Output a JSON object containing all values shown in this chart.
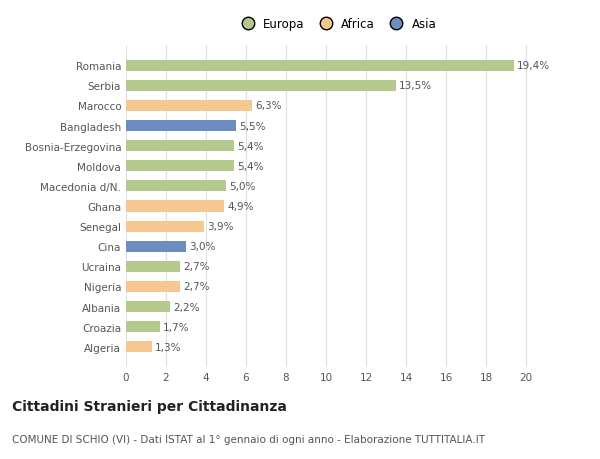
{
  "countries": [
    "Algeria",
    "Croazia",
    "Albania",
    "Nigeria",
    "Ucraina",
    "Cina",
    "Senegal",
    "Ghana",
    "Macedonia d/N.",
    "Moldova",
    "Bosnia-Erzegovina",
    "Bangladesh",
    "Marocco",
    "Serbia",
    "Romania"
  ],
  "values": [
    1.3,
    1.7,
    2.2,
    2.7,
    2.7,
    3.0,
    3.9,
    4.9,
    5.0,
    5.4,
    5.4,
    5.5,
    6.3,
    13.5,
    19.4
  ],
  "continents": [
    "Africa",
    "Europa",
    "Europa",
    "Africa",
    "Europa",
    "Asia",
    "Africa",
    "Africa",
    "Europa",
    "Europa",
    "Europa",
    "Asia",
    "Africa",
    "Europa",
    "Europa"
  ],
  "colors": {
    "Europa": "#b5c98e",
    "Africa": "#f5c791",
    "Asia": "#6b8dbf"
  },
  "legend_labels": [
    "Europa",
    "Africa",
    "Asia"
  ],
  "legend_colors": [
    "#b5c98e",
    "#f5c791",
    "#6b8dbf"
  ],
  "xlim": [
    0,
    21
  ],
  "xticks": [
    0,
    2,
    4,
    6,
    8,
    10,
    12,
    14,
    16,
    18,
    20
  ],
  "title": "Cittadini Stranieri per Cittadinanza",
  "subtitle": "COMUNE DI SCHIO (VI) - Dati ISTAT al 1° gennaio di ogni anno - Elaborazione TUTTITALIA.IT",
  "bg_color": "#ffffff",
  "grid_color": "#e0e0e0",
  "bar_height": 0.55,
  "label_fontsize": 7.5,
  "value_fontsize": 7.5,
  "title_fontsize": 10,
  "subtitle_fontsize": 7.5
}
